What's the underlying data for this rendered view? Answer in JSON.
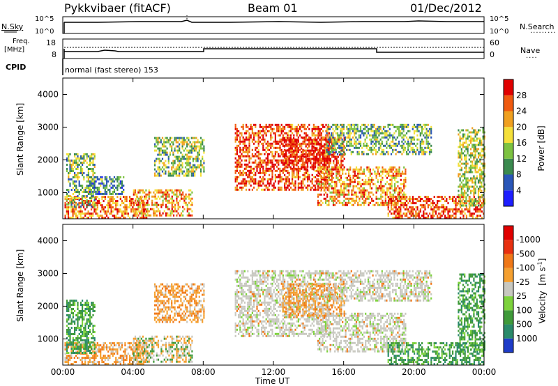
{
  "header": {
    "title": "Pykkvibaer (fitACF)",
    "beam": "Beam 01",
    "date": "01/Dec/2012"
  },
  "top_panels": {
    "nsky_label": "N.Sky",
    "nsky_ticks": [
      "10^5",
      "10^0"
    ],
    "nsearch_label": "N.Search",
    "nsearch_ticks": [
      "10^5",
      "10^0"
    ],
    "freq_label_1": "Freq.",
    "freq_label_2": "[MHz]",
    "freq_ticks": [
      "18",
      "8"
    ],
    "nave_label": "Nave",
    "nave_ticks": [
      "60",
      "0"
    ],
    "cpid_label": "CPID",
    "cpid_text": "normal (fast stereo) 153"
  },
  "chart_data": [
    {
      "type": "heatmap",
      "title": "",
      "ylabel": "Slant Range [km]",
      "yticks": [
        "1000",
        "2000",
        "3000",
        "4000"
      ],
      "ylim": [
        200,
        4500
      ],
      "xlim": [
        "00:00",
        "24:00"
      ],
      "colorbar": {
        "label": "Power [dB]",
        "ticks": [
          "4",
          "8",
          "12",
          "16",
          "20",
          "24",
          "28"
        ],
        "colors": [
          "#1e1eff",
          "#2a56b8",
          "#3b8a4f",
          "#7dc241",
          "#f5e03a",
          "#f0a020",
          "#f05a10",
          "#e00000"
        ]
      }
    },
    {
      "type": "heatmap",
      "title": "",
      "ylabel": "Slant Range [km]",
      "yticks": [
        "1000",
        "2000",
        "3000",
        "4000"
      ],
      "ylim": [
        200,
        4500
      ],
      "xlim": [
        "00:00",
        "24:00"
      ],
      "xlabel": "Time UT",
      "xticks": [
        "00:00",
        "04:00",
        "08:00",
        "12:00",
        "16:00",
        "20:00",
        "00:00"
      ],
      "colorbar": {
        "label_main": "Velocity",
        "label_unit": "[m s",
        "label_exp": "-1",
        "label_close": "]",
        "ticks": [
          "1000",
          "500",
          "100",
          "25",
          "-25",
          "-100",
          "-500",
          "-1000"
        ],
        "colors": [
          "#1e3cc8",
          "#2a8a6a",
          "#3f9a3a",
          "#7dd23c",
          "#c8c8c0",
          "#f5a030",
          "#f07818",
          "#e83010",
          "#e00000"
        ]
      }
    }
  ]
}
